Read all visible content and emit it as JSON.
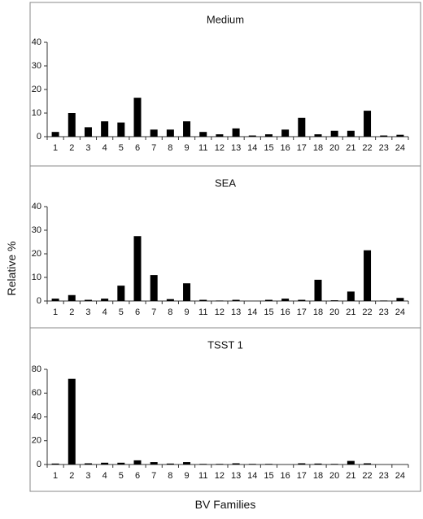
{
  "figure": {
    "ylabel": "Relative %",
    "xlabel": "BV Families"
  },
  "chart_data": [
    {
      "type": "bar",
      "title": "Medium",
      "categories": [
        "1",
        "2",
        "3",
        "4",
        "5",
        "6",
        "7",
        "8",
        "9",
        "11",
        "12",
        "13",
        "14",
        "15",
        "16",
        "17",
        "18",
        "20",
        "21",
        "22",
        "23",
        "24"
      ],
      "values": [
        2,
        10,
        4,
        6.5,
        6,
        16.5,
        3,
        3,
        6.5,
        2,
        1,
        3.5,
        0.5,
        1,
        3,
        8,
        1,
        2.5,
        2.5,
        11,
        0.5,
        0.8
      ],
      "ylim": [
        0,
        40
      ],
      "yticks": [
        0,
        10,
        20,
        30,
        40
      ],
      "grid": false,
      "legend": "none"
    },
    {
      "type": "bar",
      "title": "SEA",
      "categories": [
        "1",
        "2",
        "3",
        "4",
        "5",
        "6",
        "7",
        "8",
        "9",
        "11",
        "12",
        "13",
        "14",
        "15",
        "16",
        "17",
        "18",
        "20",
        "21",
        "22",
        "23",
        "24"
      ],
      "values": [
        1,
        2.5,
        0.5,
        1,
        6.5,
        27.5,
        11,
        0.8,
        7.5,
        0.5,
        0.2,
        0.5,
        0,
        0.5,
        1,
        0.5,
        9,
        0.3,
        4,
        21.5,
        0.2,
        1.3
      ],
      "ylim": [
        0,
        40
      ],
      "yticks": [
        0,
        10,
        20,
        30,
        40
      ],
      "grid": false,
      "legend": "none"
    },
    {
      "type": "bar",
      "title": "TSST 1",
      "categories": [
        "1",
        "2",
        "3",
        "4",
        "5",
        "6",
        "7",
        "8",
        "9",
        "11",
        "12",
        "13",
        "14",
        "15",
        "16",
        "17",
        "18",
        "20",
        "21",
        "22",
        "23",
        "24"
      ],
      "values": [
        0.8,
        72,
        1,
        1.5,
        1.5,
        3.5,
        2,
        0.8,
        2,
        0.5,
        0.5,
        1,
        0.5,
        0.5,
        0,
        1,
        0.8,
        0.5,
        3,
        1,
        0,
        0
      ],
      "ylim": [
        0,
        80
      ],
      "yticks": [
        0,
        20,
        40,
        60,
        80
      ],
      "grid": false,
      "legend": "none"
    }
  ]
}
